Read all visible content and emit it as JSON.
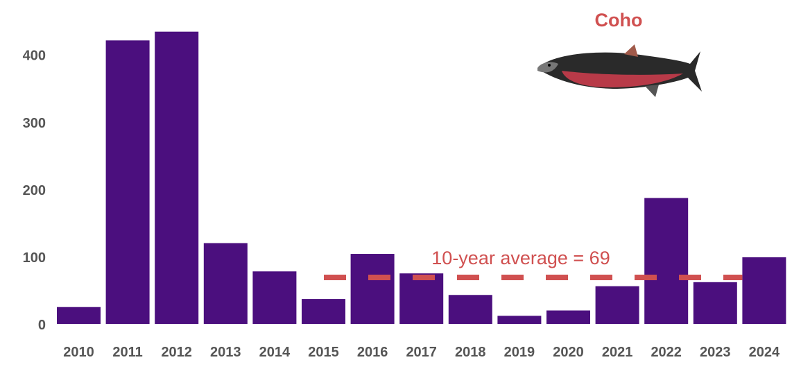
{
  "chart_data": {
    "type": "bar",
    "title": "Coho",
    "categories": [
      "2010",
      "2011",
      "2012",
      "2013",
      "2014",
      "2015",
      "2016",
      "2017",
      "2018",
      "2019",
      "2020",
      "2021",
      "2022",
      "2023",
      "2024"
    ],
    "values": [
      25,
      421,
      434,
      120,
      78,
      37,
      104,
      75,
      43,
      12,
      20,
      56,
      187,
      62,
      99
    ],
    "ylim": [
      0,
      480
    ],
    "yticks": [
      0,
      100,
      200,
      300,
      400
    ],
    "xlabel": "",
    "ylabel": "",
    "grid": false,
    "bar_color": "#4b0f7e",
    "reference_line": {
      "label": "10-year average = 69",
      "value": 69,
      "from": "2015",
      "to": "2024",
      "color": "#d05050",
      "style": "dashed"
    }
  },
  "image": {
    "icon": "coho-salmon-fish-icon"
  }
}
